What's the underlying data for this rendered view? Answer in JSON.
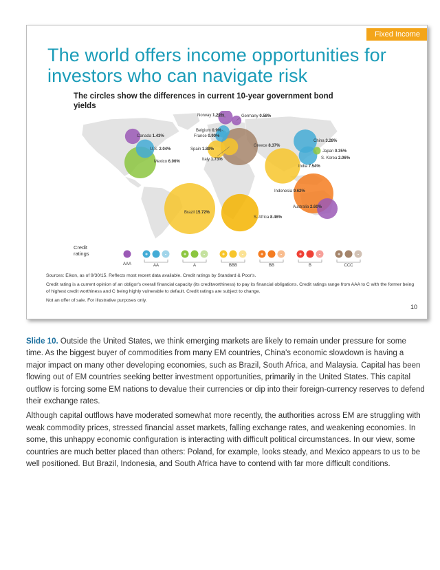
{
  "tag": "Fixed Income",
  "title": "The world offers income opportunities for investors who can navigate risk",
  "subtitle": "The circles show the differences in current 10-year government bond yields",
  "countries": [
    {
      "name": "Norway",
      "yield": "1.29%",
      "value": 1.29,
      "rating": "AAA",
      "color": "#9b59b6"
    },
    {
      "name": "Germany",
      "yield": "0.58%",
      "value": 0.58,
      "rating": "AAA",
      "color": "#9b59b6"
    },
    {
      "name": "Canada",
      "yield": "1.43%",
      "value": 1.43,
      "rating": "AAA",
      "color": "#9b59b6"
    },
    {
      "name": "Belgium",
      "yield": "0.9%",
      "value": 0.9,
      "rating": "AA",
      "color": "#44acd6"
    },
    {
      "name": "France",
      "yield": "0.90%",
      "value": 0.9,
      "rating": "AA",
      "color": "#44acd6"
    },
    {
      "name": "U.S.",
      "yield": "2.04%",
      "value": 2.04,
      "rating": "AA+",
      "color": "#44acd6"
    },
    {
      "name": "Spain",
      "yield": "1.89%",
      "value": 1.89,
      "rating": "BBB+",
      "color": "#f7c52b"
    },
    {
      "name": "Italy",
      "yield": "1.73%",
      "value": 1.73,
      "rating": "BBB-",
      "color": "#f7c52b"
    },
    {
      "name": "Greece",
      "yield": "8.37%",
      "value": 8.37,
      "rating": "CCC+",
      "color": "#a4846a"
    },
    {
      "name": "China",
      "yield": "3.28%",
      "value": 3.28,
      "rating": "AA-",
      "color": "#44acd6"
    },
    {
      "name": "Japan",
      "yield": "0.35%",
      "value": 0.35,
      "rating": "A+",
      "color": "#8cc63f"
    },
    {
      "name": "S. Korea",
      "yield": "2.06%",
      "value": 2.06,
      "rating": "AA-",
      "color": "#44acd6"
    },
    {
      "name": "Mexico",
      "yield": "6.06%",
      "value": 6.06,
      "rating": "BBB+",
      "color": "#8cc63f"
    },
    {
      "name": "India",
      "yield": "7.54%",
      "value": 7.54,
      "rating": "BBB-",
      "color": "#f7c52b"
    },
    {
      "name": "Indonesia",
      "yield": "9.62%",
      "value": 9.62,
      "rating": "BB+",
      "color": "#f47c20"
    },
    {
      "name": "Australia",
      "yield": "2.60%",
      "value": 2.6,
      "rating": "AAA",
      "color": "#9b59b6"
    },
    {
      "name": "Brazil",
      "yield": "15.72%",
      "value": 15.72,
      "rating": "BB+",
      "color": "#f7c52b"
    },
    {
      "name": "S. Africa",
      "yield": "8.46%",
      "value": 8.46,
      "rating": "BBB-",
      "color": "#f5b400"
    }
  ],
  "credit_ratings": {
    "label": "Credit ratings",
    "groups": [
      {
        "name": "AAA",
        "color": "#9b59b6",
        "count": 1
      },
      {
        "name": "AA",
        "color": "#44acd6",
        "count": 3
      },
      {
        "name": "A",
        "color": "#8cc63f",
        "count": 3
      },
      {
        "name": "BBB",
        "color": "#f7c52b",
        "count": 3
      },
      {
        "name": "BB",
        "color": "#f47c20",
        "count": 3
      },
      {
        "name": "B",
        "color": "#ef4136",
        "count": 3
      },
      {
        "name": "CCC",
        "color": "#a4846a",
        "count": 3
      }
    ],
    "signs": [
      "+",
      "",
      "-"
    ]
  },
  "sources": "Sources: Eikon, as of 9/30/15. Reflects most recent data available. Credit ratings by Standard & Poor's.",
  "rating_note": "Credit rating is a current opinion of an obligor's overall financial capacity (its creditworthiness) to pay its financial obligations. Credit ratings range from AAA to C with the former being of highest credit worthiness and C being highly vulnerable to default. Credit ratings are subject to change.",
  "disclaimer": "Not an offer of sale. For illustrative purposes only.",
  "page_number": "10",
  "body": {
    "lead": "Slide 10.",
    "para1": "Outside the United States, we think emerging markets are likely to remain under pressure for some time. As the biggest buyer of commodities from many EM countries, China's economic slowdown is having a major impact on many other developing economies, such as Brazil, South Africa, and Malaysia. Capital has been flowing out of EM countries seeking better investment opportunities, primarily in the United States. This capital outflow is forcing some EM nations to devalue their currencies or dip into their foreign-currency reserves to defend their exchange rates.",
    "para2": "Although capital outflows have moderated somewhat more recently, the authorities across EM are struggling with weak commodity prices, stressed financial asset markets, falling exchange rates, and weakening economies. In some, this unhappy economic configuration is interacting with difficult political circumstances. In our view, some countries are much better placed than others: Poland, for example, looks steady, and Mexico appears to us to be well positioned. But Brazil, Indonesia, and South Africa have to contend with far more difficult conditions."
  }
}
